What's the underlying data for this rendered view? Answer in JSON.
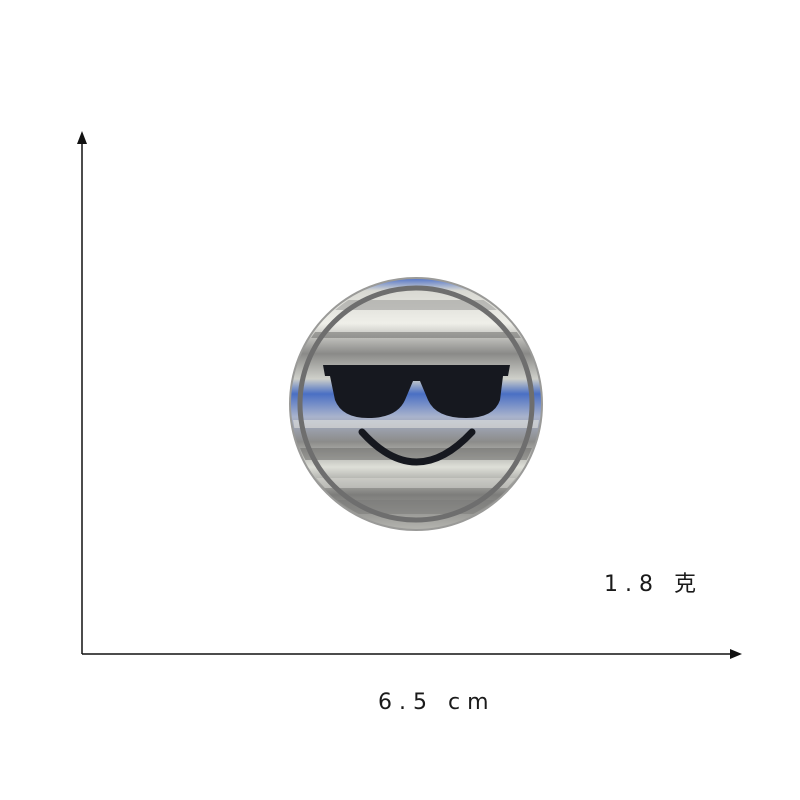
{
  "product": {
    "name": "cool-emoji-patch",
    "weight_text": "1.8 克",
    "width_text": "6.5 cm"
  },
  "colors": {
    "axis": "#111111",
    "patch_border": "#7a7a7a",
    "patch_fabric": "#c9c9c4",
    "patch_stripe_blue": "#4a6fc4",
    "embroidery_black": "#16181f"
  }
}
